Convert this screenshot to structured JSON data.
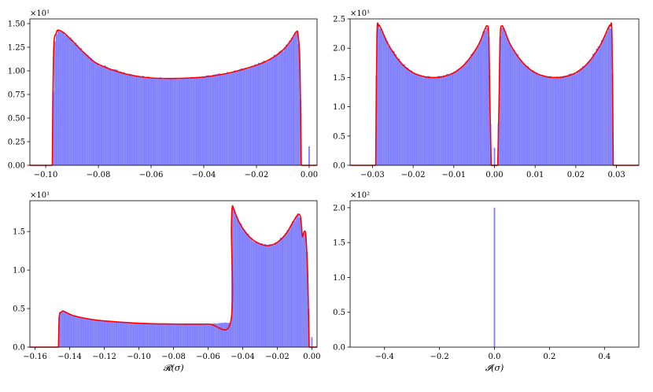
{
  "chart_data": [
    {
      "type": "histogram",
      "id": "real-part-top",
      "xlim": [
        -0.106,
        0.003
      ],
      "ylim": [
        0,
        1.55
      ],
      "y_multiplier_text": "×10¹",
      "xticks": [
        -0.1,
        -0.08,
        -0.06,
        -0.04,
        -0.02,
        0.0
      ],
      "xtick_labels": [
        "−0.10",
        "−0.08",
        "−0.06",
        "−0.04",
        "−0.02",
        "0.00"
      ],
      "yticks": [
        0,
        0.25,
        0.5,
        0.75,
        1.0,
        1.25,
        1.5
      ],
      "ytick_labels": [
        "0.00",
        "0.25",
        "0.50",
        "0.75",
        "1.00",
        "1.25",
        "1.50"
      ],
      "xlabel": "",
      "support": [
        -0.0975,
        -0.003
      ],
      "density_curve": {
        "x": [
          -0.0975,
          -0.097,
          -0.096,
          -0.095,
          -0.093,
          -0.09,
          -0.085,
          -0.08,
          -0.07,
          -0.06,
          -0.05,
          -0.04,
          -0.03,
          -0.02,
          -0.015,
          -0.01,
          -0.007,
          -0.005,
          -0.0042,
          -0.0035,
          -0.003
        ],
        "y": [
          0.0,
          1.2,
          1.4,
          1.43,
          1.4,
          1.32,
          1.18,
          1.07,
          0.97,
          0.925,
          0.92,
          0.935,
          0.98,
          1.06,
          1.12,
          1.22,
          1.32,
          1.41,
          1.38,
          1.05,
          0.0
        ]
      },
      "outlier_bar": {
        "x": 0.0,
        "y": 0.2
      }
    },
    {
      "type": "histogram",
      "id": "imag-part-top",
      "xlim": [
        -0.0355,
        0.0355
      ],
      "ylim": [
        0,
        2.5
      ],
      "y_multiplier_text": "×10¹",
      "xticks": [
        -0.03,
        -0.02,
        -0.01,
        0.0,
        0.01,
        0.02,
        0.03
      ],
      "xtick_labels": [
        "−0.03",
        "−0.02",
        "−0.01",
        "0.00",
        "0.01",
        "0.02",
        "0.03"
      ],
      "yticks": [
        0,
        0.5,
        1.0,
        1.5,
        2.0,
        2.5
      ],
      "ytick_labels": [
        "0.0",
        "0.5",
        "1.0",
        "1.5",
        "2.0",
        "2.5"
      ],
      "xlabel": "",
      "support_left": [
        -0.0292,
        -0.0008
      ],
      "support_right": [
        0.0008,
        0.0292
      ],
      "density_curve_left": {
        "x": [
          -0.0292,
          -0.0289,
          -0.0285,
          -0.028,
          -0.026,
          -0.023,
          -0.02,
          -0.017,
          -0.015,
          -0.013,
          -0.01,
          -0.007,
          -0.004,
          -0.0025,
          -0.0018,
          -0.0014,
          -0.0011,
          -0.0008
        ],
        "y": [
          0.0,
          2.2,
          2.38,
          2.35,
          2.05,
          1.75,
          1.58,
          1.51,
          1.5,
          1.51,
          1.58,
          1.75,
          2.05,
          2.3,
          2.38,
          2.2,
          1.0,
          0.0
        ]
      },
      "density_curve_right": {
        "x": [
          0.0008,
          0.0011,
          0.0014,
          0.0018,
          0.0025,
          0.004,
          0.007,
          0.01,
          0.013,
          0.015,
          0.017,
          0.02,
          0.023,
          0.026,
          0.028,
          0.0285,
          0.0289,
          0.0292
        ],
        "y": [
          0.0,
          1.0,
          2.2,
          2.38,
          2.3,
          2.05,
          1.75,
          1.58,
          1.51,
          1.5,
          1.51,
          1.58,
          1.75,
          2.05,
          2.35,
          2.38,
          2.2,
          0.0
        ]
      },
      "outlier_bar": {
        "x": 0.0,
        "y": 0.3
      }
    },
    {
      "type": "histogram",
      "id": "real-part-bottom",
      "xlim": [
        -0.163,
        0.003
      ],
      "ylim": [
        0,
        1.9
      ],
      "y_multiplier_text": "×10¹",
      "xticks": [
        -0.16,
        -0.14,
        -0.12,
        -0.1,
        -0.08,
        -0.06,
        -0.04,
        -0.02,
        0.0
      ],
      "xtick_labels": [
        "−0.16",
        "−0.14",
        "−0.12",
        "−0.10",
        "−0.08",
        "−0.06",
        "−0.04",
        "−0.02",
        "0.00"
      ],
      "yticks": [
        0,
        0.5,
        1.0,
        1.5
      ],
      "ytick_labels": [
        "0.0",
        "0.5",
        "1.0",
        "1.5"
      ],
      "xlabel": "𝓡(σ)",
      "density_curve": {
        "x": [
          -0.1465,
          -0.146,
          -0.145,
          -0.144,
          -0.142,
          -0.138,
          -0.13,
          -0.12,
          -0.1,
          -0.08,
          -0.06,
          -0.047,
          -0.0465,
          -0.046,
          -0.045,
          -0.042,
          -0.038,
          -0.034,
          -0.03,
          -0.027,
          -0.024,
          -0.02,
          -0.015,
          -0.011,
          -0.008,
          -0.0065,
          -0.0055,
          -0.0045,
          -0.0035,
          -0.0025,
          -0.002,
          -0.0015
        ],
        "y": [
          0.0,
          0.4,
          0.45,
          0.47,
          0.45,
          0.41,
          0.37,
          0.34,
          0.31,
          0.3,
          0.3,
          0.32,
          1.55,
          1.82,
          1.78,
          1.62,
          1.48,
          1.39,
          1.34,
          1.32,
          1.32,
          1.36,
          1.47,
          1.62,
          1.72,
          1.68,
          1.44,
          1.5,
          1.45,
          1.0,
          0.5,
          0.0
        ]
      },
      "outlier_bar": {
        "x": 0.0,
        "y": 0.13
      }
    },
    {
      "type": "histogram",
      "id": "imag-part-bottom",
      "xlim": [
        -0.525,
        0.525
      ],
      "ylim": [
        0,
        2.1
      ],
      "y_multiplier_text": "×10²",
      "xticks": [
        -0.4,
        -0.2,
        0.0,
        0.2,
        0.4
      ],
      "xtick_labels": [
        "−0.4",
        "−0.2",
        "0.0",
        "0.2",
        "0.4"
      ],
      "yticks": [
        0,
        0.5,
        1.0,
        1.5,
        2.0
      ],
      "ytick_labels": [
        "0.0",
        "0.5",
        "1.0",
        "1.5",
        "2.0"
      ],
      "xlabel": "𝓘(σ)",
      "spike": {
        "x": 0.0,
        "y": 2.0
      }
    }
  ],
  "colors": {
    "bars": "#7f7fff",
    "bar_edge": "#a3a3ff",
    "curve": "#ff0000",
    "axis": "#000000"
  }
}
